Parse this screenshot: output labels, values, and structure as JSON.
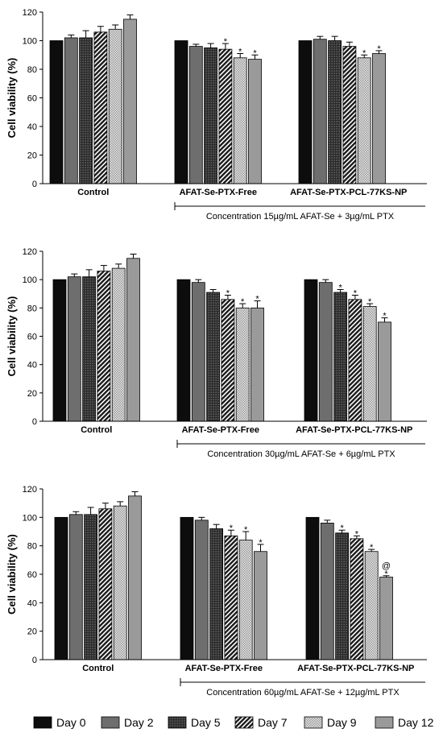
{
  "chart_data": [
    {
      "type": "bar",
      "ylabel": "Cell viability (%)",
      "ylim": [
        0,
        120
      ],
      "yticks": [
        0,
        20,
        40,
        60,
        80,
        100,
        120
      ],
      "groups": [
        "Control",
        "AFAT-Se-PTX-Free",
        "AFAT-Se-PTX-PCL-77KS-NP"
      ],
      "series_names": [
        "Day 0",
        "Day 2",
        "Day 5",
        "Day 7",
        "Day 9",
        "Day 12"
      ],
      "values": [
        [
          100,
          102,
          102,
          106,
          108,
          115
        ],
        [
          100,
          96,
          95,
          94,
          88,
          87
        ],
        [
          100,
          101,
          100,
          96,
          88,
          91
        ]
      ],
      "errors": [
        [
          0,
          2,
          5,
          4,
          3,
          3
        ],
        [
          0,
          1.5,
          3,
          4,
          3,
          3
        ],
        [
          0,
          2,
          3,
          3,
          2,
          2
        ]
      ],
      "annotations": [
        [
          "",
          "",
          "",
          "",
          "",
          ""
        ],
        [
          "",
          "",
          "",
          "*",
          "*",
          "*"
        ],
        [
          "",
          "",
          "",
          "",
          "*",
          "*"
        ]
      ],
      "note": "Concentration 15µg/mL AFAT-Se +  3µg/mL PTX"
    },
    {
      "type": "bar",
      "ylabel": "Cell viability (%)",
      "ylim": [
        0,
        120
      ],
      "yticks": [
        0,
        20,
        40,
        60,
        80,
        100,
        120
      ],
      "groups": [
        "Control",
        "AFAT-Se-PTX-Free",
        "AFAT-Se-PTX-PCL-77KS-NP"
      ],
      "series_names": [
        "Day 0",
        "Day 2",
        "Day 5",
        "Day 7",
        "Day 9",
        "Day 12"
      ],
      "values": [
        [
          100,
          102,
          102,
          106,
          108,
          115
        ],
        [
          100,
          98,
          91,
          86,
          80,
          80
        ],
        [
          100,
          98,
          91,
          86,
          81,
          70
        ]
      ],
      "errors": [
        [
          0,
          2,
          5,
          4,
          3,
          3
        ],
        [
          0,
          2,
          2,
          3,
          3,
          5
        ],
        [
          0,
          2,
          2,
          3,
          2,
          3
        ]
      ],
      "annotations": [
        [
          "",
          "",
          "",
          "",
          "",
          ""
        ],
        [
          "",
          "",
          "",
          "*",
          "*",
          "*"
        ],
        [
          "",
          "",
          "*",
          "*",
          "*",
          "*"
        ]
      ],
      "note": "Concentration 30µg/mL AFAT-Se +  6µg/mL PTX"
    },
    {
      "type": "bar",
      "ylabel": "Cell viability (%)",
      "ylim": [
        0,
        120
      ],
      "yticks": [
        0,
        20,
        40,
        60,
        80,
        100,
        120
      ],
      "groups": [
        "Control",
        "AFAT-Se-PTX-Free",
        "AFAT-Se-PTX-PCL-77KS-NP"
      ],
      "series_names": [
        "Day 0",
        "Day 2",
        "Day 5",
        "Day 7",
        "Day 9",
        "Day 12"
      ],
      "values": [
        [
          100,
          102,
          102,
          106,
          108,
          115
        ],
        [
          100,
          98,
          92,
          87,
          84,
          76
        ],
        [
          100,
          96,
          89,
          85,
          76,
          58
        ]
      ],
      "errors": [
        [
          0,
          2,
          5,
          4,
          3,
          3
        ],
        [
          0,
          2,
          3,
          4,
          6,
          5
        ],
        [
          0,
          2,
          2,
          2,
          1.5,
          1
        ]
      ],
      "annotations": [
        [
          "",
          "",
          "",
          "",
          "",
          ""
        ],
        [
          "",
          "",
          "",
          "*",
          "*",
          "*"
        ],
        [
          "",
          "",
          "*",
          "*",
          "*",
          "@\n*"
        ]
      ],
      "note": "Concentration 60µg/mL AFAT-Se + 12µg/mL PTX"
    }
  ],
  "legend": {
    "items": [
      "Day 0",
      "Day 2",
      "Day 5",
      "Day 7",
      "Day 9",
      "Day 12"
    ],
    "placement": "bottom"
  },
  "series_colors": [
    "#0d0d0d",
    "#6e6e6e",
    "#3a3a3a",
    "#2a2a2a",
    "#c8c8c8",
    "#9a9a9a"
  ]
}
